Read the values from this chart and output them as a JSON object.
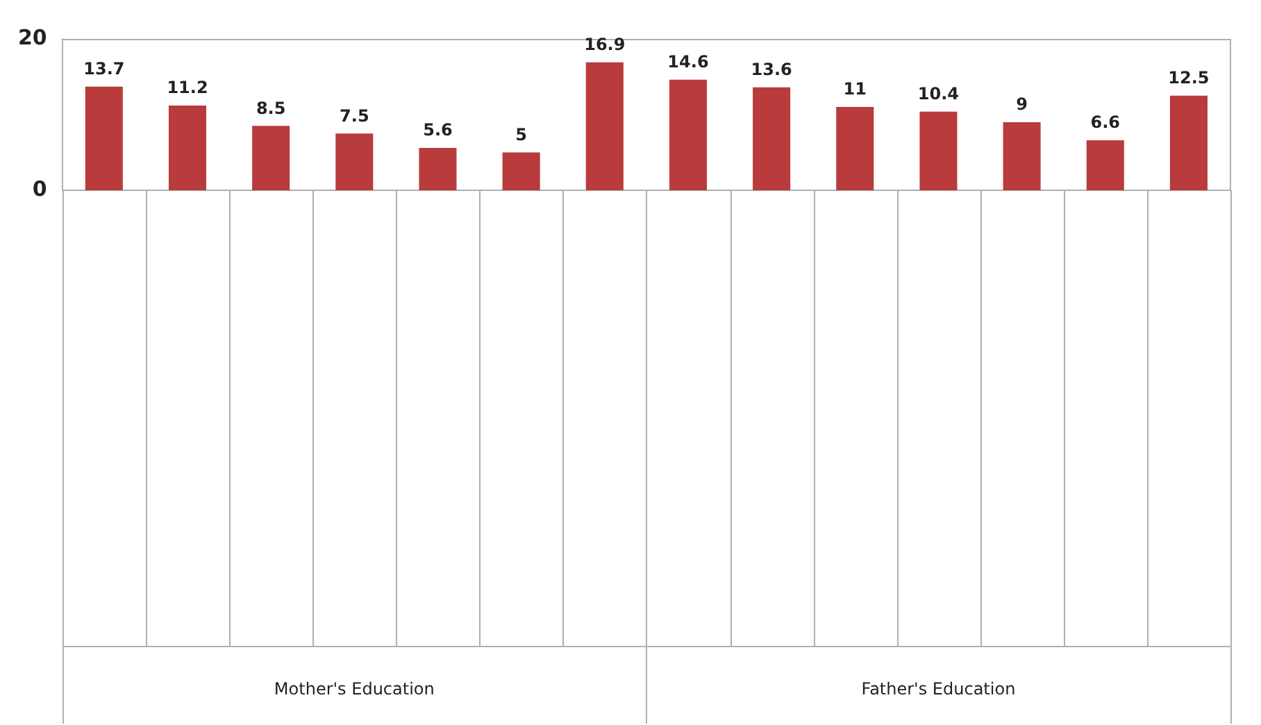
{
  "chart_data": {
    "type": "bar",
    "categories": [
      null,
      null,
      null,
      null,
      null,
      null,
      null,
      null,
      null,
      null,
      null,
      null,
      null,
      null
    ],
    "values": [
      13.7,
      11.2,
      8.5,
      7.5,
      5.6,
      5,
      16.9,
      14.6,
      13.6,
      11,
      10.4,
      9,
      6.6,
      12.5
    ],
    "color": "#b93b3b",
    "ylim": [
      0,
      20
    ],
    "yticks": [
      0,
      20
    ],
    "grid": false,
    "legend": false,
    "data_labels": true,
    "annotations": [
      "Mother's Education",
      "Father's Education"
    ]
  }
}
